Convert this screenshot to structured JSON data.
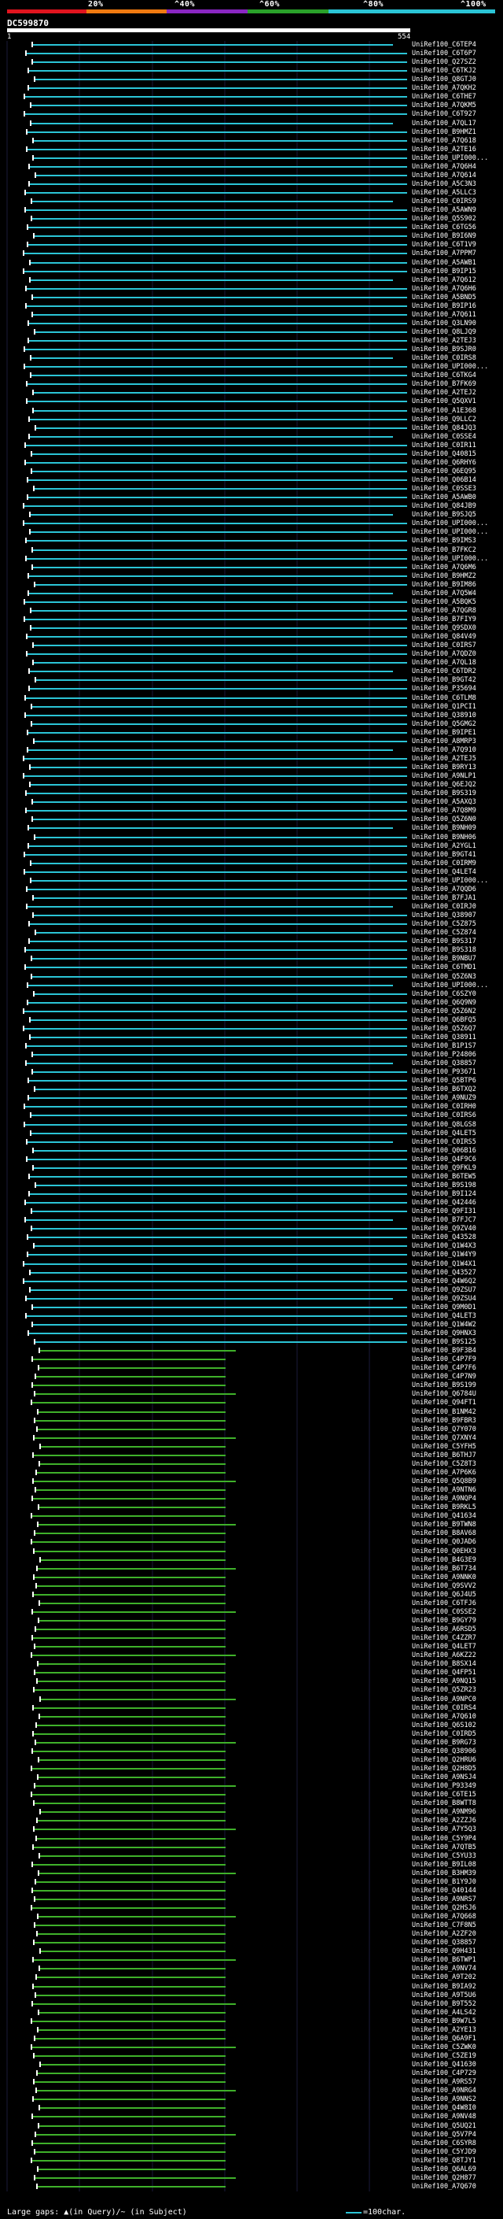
{
  "scale": {
    "labels": [
      "20%",
      "^40%",
      "^60%",
      "^80%",
      "^100%"
    ],
    "bands": [
      "#e0141e",
      "#f07a10",
      "#8a27c2",
      "#2aa12a",
      "#2bc4d6"
    ]
  },
  "query": {
    "title": "DC599870",
    "start": "1",
    "end": "554"
  },
  "colors": {
    "high": "#2bc4d6",
    "mid": "#3fb12a",
    "tick": "#ffffff"
  },
  "hits": [
    "UniRef100_C6TEP4",
    "UniRef100_C6T6P7",
    "UniRef100_Q27SZ2",
    "UniRef100_C6TKJ2",
    "UniRef100_Q8GTJ0",
    "UniRef100_A7QKH2",
    "UniRef100_C6THE7",
    "UniRef100_A7QKM5",
    "UniRef100_C6T927",
    "UniRef100_A7QL17",
    "UniRef100_B9HMZ1",
    "UniRef100_A7Q618",
    "UniRef100_A2TE16",
    "UniRef100_UPI000...",
    "UniRef100_A7Q6H4",
    "UniRef100_A7Q614",
    "UniRef100_A5C3N3",
    "UniRef100_A5LLC3",
    "UniRef100_C0IRS9",
    "UniRef100_A5AWN9",
    "UniRef100_Q5S902",
    "UniRef100_C6TG56",
    "UniRef100_B9I6N9",
    "UniRef100_C6T1V9",
    "UniRef100_A7PPM7",
    "UniRef100_A5AWB1",
    "UniRef100_B9IP15",
    "UniRef100_A7Q612",
    "UniRef100_A7Q6H6",
    "UniRef100_A5BND5",
    "UniRef100_B9IP16",
    "UniRef100_A7Q611",
    "UniRef100_Q3LN90",
    "UniRef100_Q8LJQ9",
    "UniRef100_A2TEJ3",
    "UniRef100_B9SJR0",
    "UniRef100_C0IRS8",
    "UniRef100_UPI000...",
    "UniRef100_C6TKG4",
    "UniRef100_B7FK69",
    "UniRef100_A2TEJ2",
    "UniRef100_Q5QXV1",
    "UniRef100_A1E368",
    "UniRef100_Q9LLC2",
    "UniRef100_Q84JQ3",
    "UniRef100_C0SSE4",
    "UniRef100_C0IR11",
    "UniRef100_Q40815",
    "UniRef100_Q6RHY6",
    "UniRef100_Q6EQ95",
    "UniRef100_Q06B14",
    "UniRef100_C0SSE3",
    "UniRef100_A5AWB0",
    "UniRef100_Q84JB9",
    "UniRef100_B9SJQ5",
    "UniRef100_UPI000...",
    "UniRef100_UPI000...",
    "UniRef100_B9IMS3",
    "UniRef100_B7FKC2",
    "UniRef100_UPI000...",
    "UniRef100_A7Q6M6",
    "UniRef100_B9HMZ2",
    "UniRef100_B9IM86",
    "UniRef100_A7Q5W4",
    "UniRef100_A5BQK5",
    "UniRef100_A7QGR8",
    "UniRef100_B7FIY9",
    "UniRef100_Q9SDX0",
    "UniRef100_Q84V49",
    "UniRef100_C0IRS7",
    "UniRef100_A7QDZ0",
    "UniRef100_A7QL18",
    "UniRef100_C6TDR2",
    "UniRef100_B9GT42",
    "UniRef100_P35694",
    "UniRef100_C6TLM8",
    "UniRef100_Q1PCI1",
    "UniRef100_Q38910",
    "UniRef100_Q5GMG2",
    "UniRef100_B9IPE1",
    "UniRef100_A8MRP3",
    "UniRef100_A7Q910",
    "UniRef100_A2TEJ5",
    "UniRef100_B9RY13",
    "UniRef100_A9NLP1",
    "UniRef100_Q6EJQ2",
    "UniRef100_B9S319",
    "UniRef100_A5AXQ3",
    "UniRef100_A7Q8M9",
    "UniRef100_Q5Z6N0",
    "UniRef100_B9NH09",
    "UniRef100_B9NH06",
    "UniRef100_A2YGL1",
    "UniRef100_B9GT41",
    "UniRef100_C0IRM9",
    "UniRef100_Q4LET4",
    "UniRef100_UPI000...",
    "UniRef100_A7QQD6",
    "UniRef100_B7FJA1",
    "UniRef100_C0IRJ0",
    "UniRef100_Q38907",
    "UniRef100_C5Z875",
    "UniRef100_C5Z874",
    "UniRef100_B9S317",
    "UniRef100_B9S318",
    "UniRef100_B9NBU7",
    "UniRef100_C6TMD1",
    "UniRef100_Q5Z6N3",
    "UniRef100_UPI000...",
    "UniRef100_C6SZY0",
    "UniRef100_Q6Q9N9",
    "UniRef100_Q5Z6N2",
    "UniRef100_Q6BFQ5",
    "UniRef100_Q5Z6Q7",
    "UniRef100_Q38911",
    "UniRef100_B1P1S7",
    "UniRef100_P24806",
    "UniRef100_Q38857",
    "UniRef100_P93671",
    "UniRef100_Q5BTP6",
    "UniRef100_B6TXQ2",
    "UniRef100_A9NUZ9",
    "UniRef100_C0IRH0",
    "UniRef100_C0IRS6",
    "UniRef100_Q8LGS8",
    "UniRef100_Q4LET5",
    "UniRef100_C0IRS5",
    "UniRef100_Q06B16",
    "UniRef100_Q4F9C6",
    "UniRef100_Q9FKL9",
    "UniRef100_B6TEW5",
    "UniRef100_B9S198",
    "UniRef100_B9I124",
    "UniRef100_Q42446",
    "UniRef100_Q9FI31",
    "UniRef100_B7FJC7",
    "UniRef100_Q9ZV40",
    "UniRef100_Q43528",
    "UniRef100_Q1W4X3",
    "UniRef100_Q1W4Y9",
    "UniRef100_Q1W4X1",
    "UniRef100_Q43527",
    "UniRef100_Q4W6Q2",
    "UniRef100_Q9ZSU7",
    "UniRef100_Q9ZSU4",
    "UniRef100_Q9M0D1",
    "UniRef100_Q4LET3",
    "UniRef100_Q1W4W2",
    "UniRef100_Q9HNX3",
    "UniRef100_B9S125",
    "UniRef100_B9F3B4",
    "UniRef100_C4P7F9",
    "UniRef100_C4P7F6",
    "UniRef100_C4P7N9",
    "UniRef100_B9S199",
    "UniRef100_Q6784U",
    "UniRef100_Q94FT1",
    "UniRef100_B1NM42",
    "UniRef100_B9FBR3",
    "UniRef100_Q7Y070",
    "UniRef100_Q7XNY4",
    "UniRef100_C5YFH5",
    "UniRef100_B6THJ7",
    "UniRef100_C5Z8T3",
    "UniRef100_A7P6K6",
    "UniRef100_Q5Q8B9",
    "UniRef100_A9NTN6",
    "UniRef100_A9NQP4",
    "UniRef100_B9RKL5",
    "UniRef100_Q41634",
    "UniRef100_B9TWN8",
    "UniRef100_B8AV68",
    "UniRef100_Q0JAD6",
    "UniRef100_Q0EHX3",
    "UniRef100_B4G3E9",
    "UniRef100_B6T734",
    "UniRef100_A9NNK0",
    "UniRef100_Q9SVV2",
    "UniRef100_Q6J4U5",
    "UniRef100_C6TFJ6",
    "UniRef100_C0SSE2",
    "UniRef100_B9GY79",
    "UniRef100_A6RSD5",
    "UniRef100_C4ZZR7",
    "UniRef100_Q4LET7",
    "UniRef100_A6KZ22",
    "UniRef100_B8SX14",
    "UniRef100_Q4FP51",
    "UniRef100_A9NQ15",
    "UniRef100_Q5ZR23",
    "UniRef100_A9NPC0",
    "UniRef100_C0IRS4",
    "UniRef100_A7Q610",
    "UniRef100_Q6S102",
    "UniRef100_C0IRD5",
    "UniRef100_B9RG73",
    "UniRef100_Q38906",
    "UniRef100_Q2HRU6",
    "UniRef100_Q2H8D5",
    "UniRef100_A9NSJ4",
    "UniRef100_P93349",
    "UniRef100_C6TE15",
    "UniRef100_B8WTT8",
    "UniRef100_A9NM96",
    "UniRef100_A2ZZJ6",
    "UniRef100_A7Y5Q3",
    "UniRef100_C5Y9P4",
    "UniRef100_A7QTB5",
    "UniRef100_C5YU33",
    "UniRef100_B9IL08",
    "UniRef100_B3HM39",
    "UniRef100_B1Y9J0",
    "UniRef100_Q40144",
    "UniRef100_A9NRS7",
    "UniRef100_Q2HSJ6",
    "UniRef100_A7Q668",
    "UniRef100_C7F8N5",
    "UniRef100_A2ZF20",
    "UniRef100_Q38857",
    "UniRef100_Q9H431",
    "UniRef100_B6TWP1",
    "UniRef100_A9NV74",
    "UniRef100_A9T202",
    "UniRef100_B9IA92",
    "UniRef100_A9T5U6",
    "UniRef100_B9T552",
    "UniRef100_A4LS42",
    "UniRef100_B9W7L5",
    "UniRef100_A2YE13",
    "UniRef100_Q6A9F1",
    "UniRef100_C5ZWK0",
    "UniRef100_C5ZE19",
    "UniRef100_Q41630",
    "UniRef100_C4P729",
    "UniRef100_A9RS57",
    "UniRef100_A9NRG4",
    "UniRef100_A9NNS2",
    "UniRef100_Q4W8I0",
    "UniRef100_A9NV48",
    "UniRef100_Q5UQ21",
    "UniRef100_Q5V7P4",
    "UniRef100_C6SYR8",
    "UniRef100_C5YJD9",
    "UniRef100_Q8TJY1",
    "UniRef100_Q6AL69",
    "UniRef100_Q2H877",
    "UniRef100_A7Q670"
  ],
  "legend": {
    "gaps": "Large gaps: ▲(in Query)/~ (in Subject)",
    "scale": "=100char."
  }
}
